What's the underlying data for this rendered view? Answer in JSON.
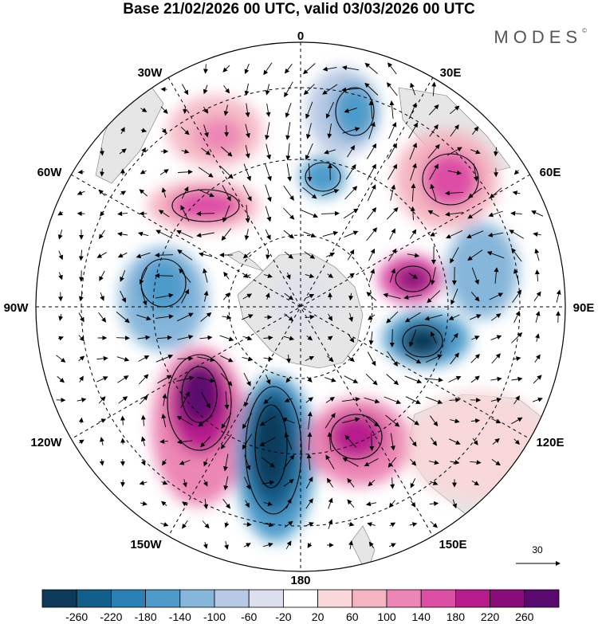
{
  "title": "Base 21/02/2026 00 UTC, valid 03/03/2026 00 UTC",
  "logo": "MODES",
  "logo_mark": "©",
  "longitude_labels": {
    "lon_0": "0",
    "lon_30e": "30E",
    "lon_60e": "60E",
    "lon_90e": "90E",
    "lon_120e": "120E",
    "lon_150e": "150E",
    "lon_180": "180",
    "lon_150w": "150W",
    "lon_120w": "120W",
    "lon_90w": "90W",
    "lon_60w": "60W",
    "lon_30w": "30W"
  },
  "reference_vector": {
    "label": "30"
  },
  "colorbar": {
    "labels": [
      "-260",
      "-220",
      "-180",
      "-140",
      "-100",
      "-60",
      "-20",
      "20",
      "60",
      "100",
      "140",
      "180",
      "220",
      "260"
    ],
    "colors": [
      "#0d3a5a",
      "#135f8c",
      "#2a7fb5",
      "#4e9bcb",
      "#86b6da",
      "#b7c9e4",
      "#dcdfee",
      "#ffffff",
      "#f8d8d9",
      "#f4b4c0",
      "#ec86b4",
      "#dd4ea5",
      "#b81c8c",
      "#8a0b7a",
      "#5a0a6e"
    ]
  },
  "legend": {
    "map_projection": "South polar stereographic",
    "field": "Height anomaly with wind vectors"
  }
}
